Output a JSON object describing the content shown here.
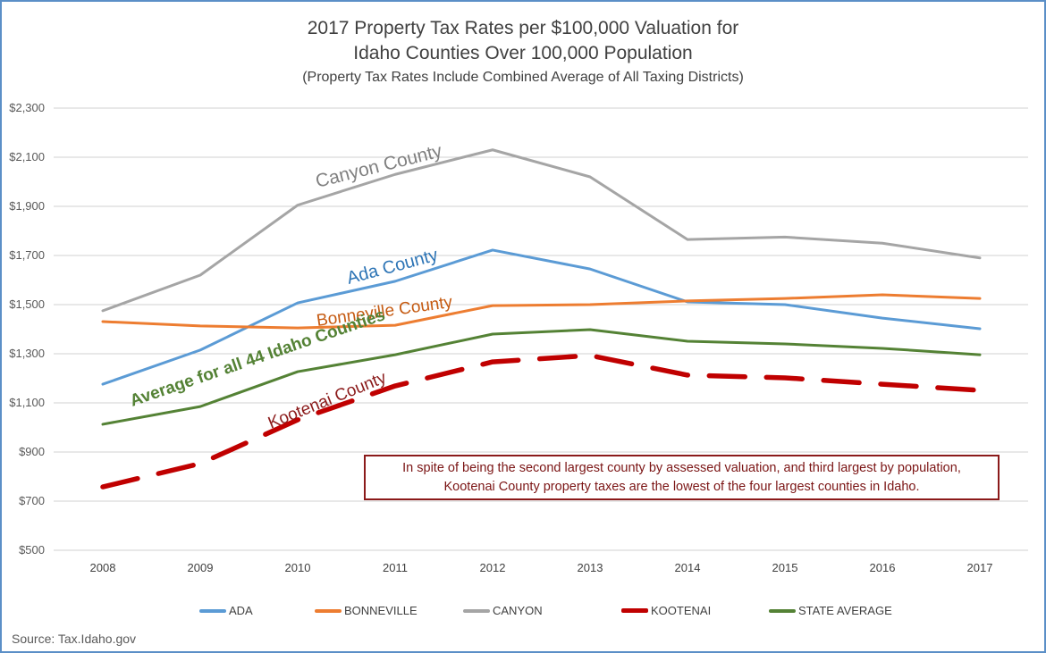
{
  "chart_data": {
    "type": "line",
    "title": "2017 Property Tax Rates per $100,000 Valuation for",
    "title_line2": "Idaho Counties Over 100,000 Population",
    "subtitle": "(Property Tax Rates Include Combined Average of All Taxing Districts)",
    "xlabel": "",
    "ylabel": "",
    "x": [
      "2008",
      "2009",
      "2010",
      "2011",
      "2012",
      "2013",
      "2014",
      "2015",
      "2016",
      "2017"
    ],
    "ylim": [
      500,
      2300
    ],
    "yticks": [
      500,
      700,
      900,
      1100,
      1300,
      1500,
      1700,
      1900,
      2100,
      2300
    ],
    "ytick_labels": [
      "$500",
      "$700",
      "$900",
      "$1,100",
      "$1,300",
      "$1,500",
      "$1,700",
      "$1,900",
      "$2,100",
      "$2,300"
    ],
    "grid": true,
    "legend_position": "bottom",
    "series": [
      {
        "name": "ADA",
        "color": "#5b9bd5",
        "dashed": false,
        "values": [
          1176,
          1315,
          1507,
          1595,
          1722,
          1645,
          1511,
          1500,
          1445,
          1402
        ]
      },
      {
        "name": "BONNEVILLE",
        "color": "#ed7d31",
        "dashed": false,
        "values": [
          1431,
          1413,
          1405,
          1416,
          1496,
          1500,
          1515,
          1525,
          1540,
          1525
        ]
      },
      {
        "name": "CANYON",
        "color": "#a5a5a5",
        "dashed": false,
        "values": [
          1475,
          1620,
          1905,
          2030,
          2130,
          2020,
          1765,
          1775,
          1750,
          1690
        ]
      },
      {
        "name": "KOOTENAI",
        "color": "#c00000",
        "dashed": true,
        "values": [
          758,
          853,
          1031,
          1169,
          1267,
          1293,
          1213,
          1202,
          1176,
          1151
        ]
      },
      {
        "name": "STATE AVERAGE",
        "color": "#548235",
        "dashed": false,
        "values": [
          1013,
          1085,
          1227,
          1296,
          1380,
          1398,
          1351,
          1340,
          1322,
          1296
        ]
      }
    ],
    "annotations": [
      {
        "text": "Canyon County",
        "color": "#808080"
      },
      {
        "text": "Ada County",
        "color": "#2e75b6"
      },
      {
        "text": "Bonneville County",
        "color": "#c55a11"
      },
      {
        "text": "Average for all 44 Idaho Counties",
        "color": "#548235"
      },
      {
        "text": "Kootenai County",
        "color": "#8b1a1a"
      }
    ]
  },
  "note": {
    "line1": "In spite of being the second largest county by assessed valuation, and third largest by population,",
    "line2": "Kootenai County property taxes are the lowest of the four largest counties in Idaho."
  },
  "source": "Source:  Tax.Idaho.gov"
}
